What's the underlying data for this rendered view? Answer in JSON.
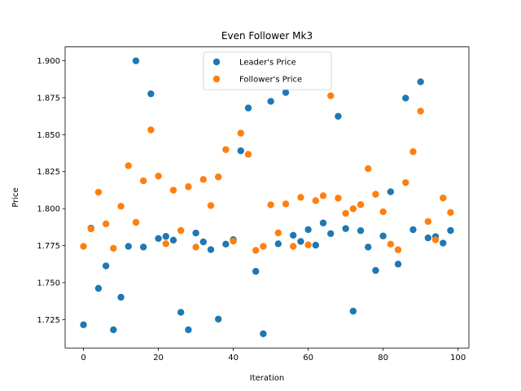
{
  "chart_data": {
    "type": "scatter",
    "title": "Even Follower Mk3",
    "xlabel": "Iteration",
    "ylabel": "Price",
    "xlim": [
      -4.9,
      102.9
    ],
    "ylim": [
      1.7058,
      1.9093
    ],
    "xticks": [
      0,
      20,
      40,
      60,
      80,
      100
    ],
    "yticks": [
      1.725,
      1.75,
      1.775,
      1.8,
      1.825,
      1.85,
      1.875,
      1.9
    ],
    "xtick_labels": [
      "0",
      "20",
      "40",
      "60",
      "80",
      "100"
    ],
    "ytick_labels": [
      "1.725",
      "1.750",
      "1.775",
      "1.800",
      "1.825",
      "1.850",
      "1.875",
      "1.900"
    ],
    "grid": false,
    "legend_position": "upper center",
    "series": [
      {
        "name": "Leader's Price",
        "color": "#1f77b4",
        "x": [
          0,
          2,
          4,
          6,
          8,
          10,
          12,
          14,
          16,
          18,
          20,
          22,
          24,
          26,
          28,
          30,
          32,
          34,
          36,
          38,
          40,
          42,
          44,
          46,
          48,
          50,
          52,
          54,
          56,
          58,
          60,
          62,
          64,
          66,
          68,
          70,
          72,
          74,
          76,
          78,
          80,
          82,
          84,
          86,
          88,
          90,
          92,
          94,
          96,
          98
        ],
        "y": [
          1.7215,
          1.7868,
          1.7461,
          1.7613,
          1.7181,
          1.7401,
          1.7745,
          1.8999,
          1.774,
          1.8776,
          1.7798,
          1.7812,
          1.7787,
          1.7299,
          1.7181,
          1.7835,
          1.7775,
          1.7723,
          1.7253,
          1.776,
          1.779,
          1.8391,
          1.868,
          1.7576,
          1.7154,
          1.8725,
          1.7762,
          1.8785,
          1.782,
          1.7778,
          1.7858,
          1.7753,
          1.7903,
          1.7831,
          1.8624,
          1.7865,
          1.7307,
          1.7851,
          1.774,
          1.7582,
          1.7815,
          1.8114,
          1.7625,
          1.8747,
          1.7858,
          1.8857,
          1.7802,
          1.781,
          1.7767,
          1.7852
        ]
      },
      {
        "name": "Follower's Price",
        "color": "#ff7f0e",
        "x": [
          0,
          2,
          4,
          6,
          8,
          10,
          12,
          14,
          16,
          18,
          20,
          22,
          24,
          26,
          28,
          30,
          32,
          34,
          36,
          38,
          40,
          42,
          44,
          46,
          48,
          50,
          52,
          54,
          56,
          58,
          60,
          62,
          64,
          66,
          68,
          70,
          72,
          74,
          76,
          78,
          80,
          82,
          84,
          86,
          88,
          90,
          92,
          94,
          96,
          98
        ],
        "y": [
          1.7745,
          1.7863,
          1.8111,
          1.7897,
          1.7732,
          1.8016,
          1.829,
          1.7907,
          1.8188,
          1.8532,
          1.822,
          1.7763,
          1.8124,
          1.7852,
          1.8148,
          1.774,
          1.8197,
          1.8021,
          1.8214,
          1.8399,
          1.778,
          1.851,
          1.8367,
          1.7718,
          1.7745,
          1.8026,
          1.7836,
          1.8032,
          1.7745,
          1.8076,
          1.7755,
          1.8054,
          1.8087,
          1.8763,
          1.8071,
          1.7968,
          1.7999,
          1.8027,
          1.827,
          1.8097,
          1.7979,
          1.776,
          1.7722,
          1.8176,
          1.8385,
          1.8659,
          1.7913,
          1.7789,
          1.8072,
          1.7974
        ]
      }
    ]
  }
}
